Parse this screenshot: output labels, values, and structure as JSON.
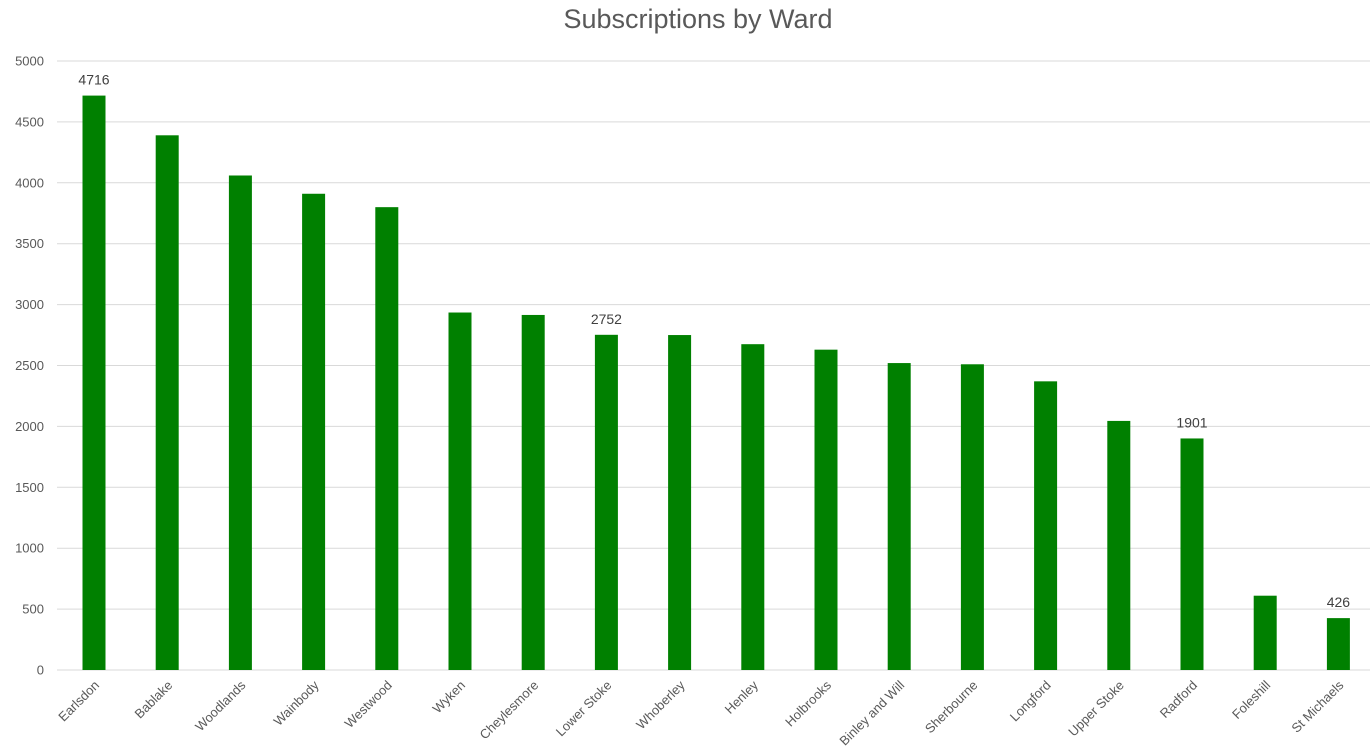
{
  "chart_data": {
    "type": "bar",
    "title": "Subscriptions by Ward",
    "xlabel": "",
    "ylabel": "",
    "ylim": [
      0,
      5000
    ],
    "yticks": [
      0,
      500,
      1000,
      1500,
      2000,
      2500,
      3000,
      3500,
      4000,
      4500,
      5000
    ],
    "grid": true,
    "legend": "none",
    "categories": [
      "Earlsdon",
      "Bablake",
      "Woodlands",
      "Wainbody",
      "Westwood",
      "Wyken",
      "Cheylesmore",
      "Lower Stoke",
      "Whoberley",
      "Henley",
      "Holbrooks",
      "Binley and Will",
      "Sherbourne",
      "Longford",
      "Upper Stoke",
      "Radford",
      "Foleshill",
      "St Michaels"
    ],
    "values": [
      4716,
      4390,
      4060,
      3910,
      3800,
      2935,
      2915,
      2752,
      2750,
      2675,
      2630,
      2520,
      2510,
      2370,
      2045,
      1901,
      610,
      426
    ],
    "data_labels": [
      {
        "category": "Earlsdon",
        "text": "4716"
      },
      {
        "category": "Lower Stoke",
        "text": "2752"
      },
      {
        "category": "Radford",
        "text": "1901"
      },
      {
        "category": "St Michaels",
        "text": "426"
      }
    ],
    "colors": {
      "bar": "#008000",
      "grid": "#d9d9d9",
      "text": "#595959"
    }
  }
}
